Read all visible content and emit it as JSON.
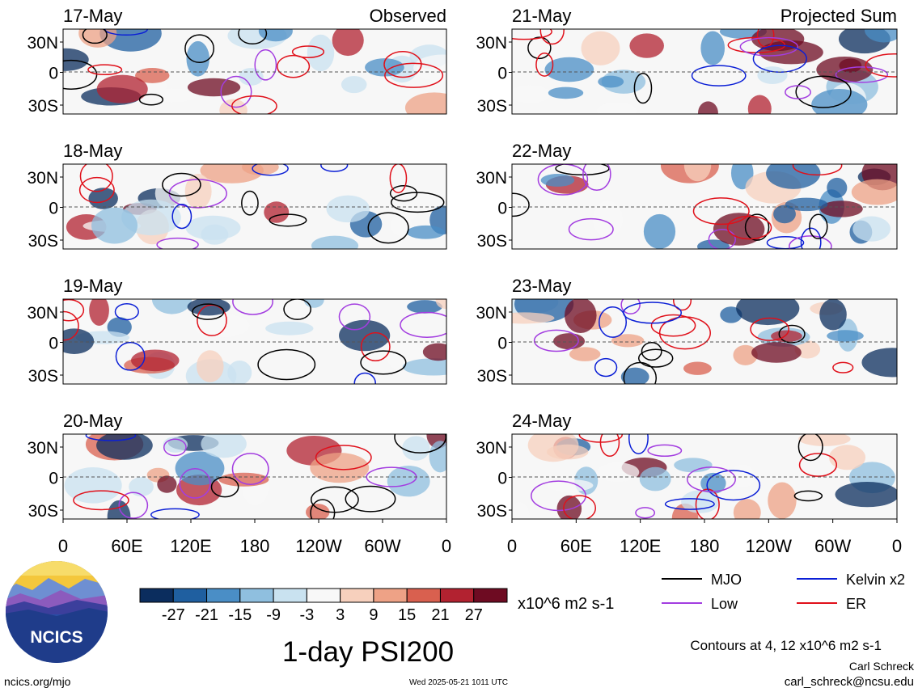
{
  "chart_data": [
    {
      "type": "heatmap",
      "column": "left",
      "column_label": "Observed",
      "panels": [
        "17-May",
        "18-May",
        "19-May",
        "20-May"
      ]
    },
    {
      "type": "heatmap",
      "column": "right",
      "column_label": "Projected Sum",
      "panels": [
        "21-May",
        "22-May",
        "23-May",
        "24-May"
      ]
    }
  ],
  "axes": {
    "y_ticks": [
      "30N",
      "0",
      "30S"
    ],
    "x_ticks": [
      "0",
      "60E",
      "120E",
      "180",
      "120W",
      "60W",
      "0"
    ],
    "longitude_range": [
      0,
      360
    ],
    "latitude_range": [
      -40,
      40
    ]
  },
  "colorbar": {
    "ticks": [
      "-27",
      "-21",
      "-15",
      "-9",
      "-3",
      "3",
      "9",
      "15",
      "21",
      "27"
    ],
    "colors": [
      "#0b2d5e",
      "#1f5fa0",
      "#4a8ec6",
      "#8fbfdf",
      "#c9e2f0",
      "#f8f8f8",
      "#f7d0bd",
      "#eea286",
      "#d9604f",
      "#b22230",
      "#6e0b22"
    ],
    "units": "x10^6 m2 s-1"
  },
  "legend": {
    "items": [
      {
        "label": "MJO",
        "color": "#000000"
      },
      {
        "label": "Kelvin x2",
        "color": "#0b1fd6"
      },
      {
        "label": "Low",
        "color": "#a33de0"
      },
      {
        "label": "ER",
        "color": "#e0101a"
      }
    ],
    "contours_note": "Contours at 4, 12 x10^6 m2 s-1"
  },
  "title": "1-day PSI200",
  "footer": {
    "url": "ncics.org/mjo",
    "timestamp": "Wed 2025-05-21 1011 UTC",
    "author": "Carl Schreck",
    "email": "carl_schreck@ncsu.edu"
  },
  "logo": {
    "text": "NCICS"
  }
}
